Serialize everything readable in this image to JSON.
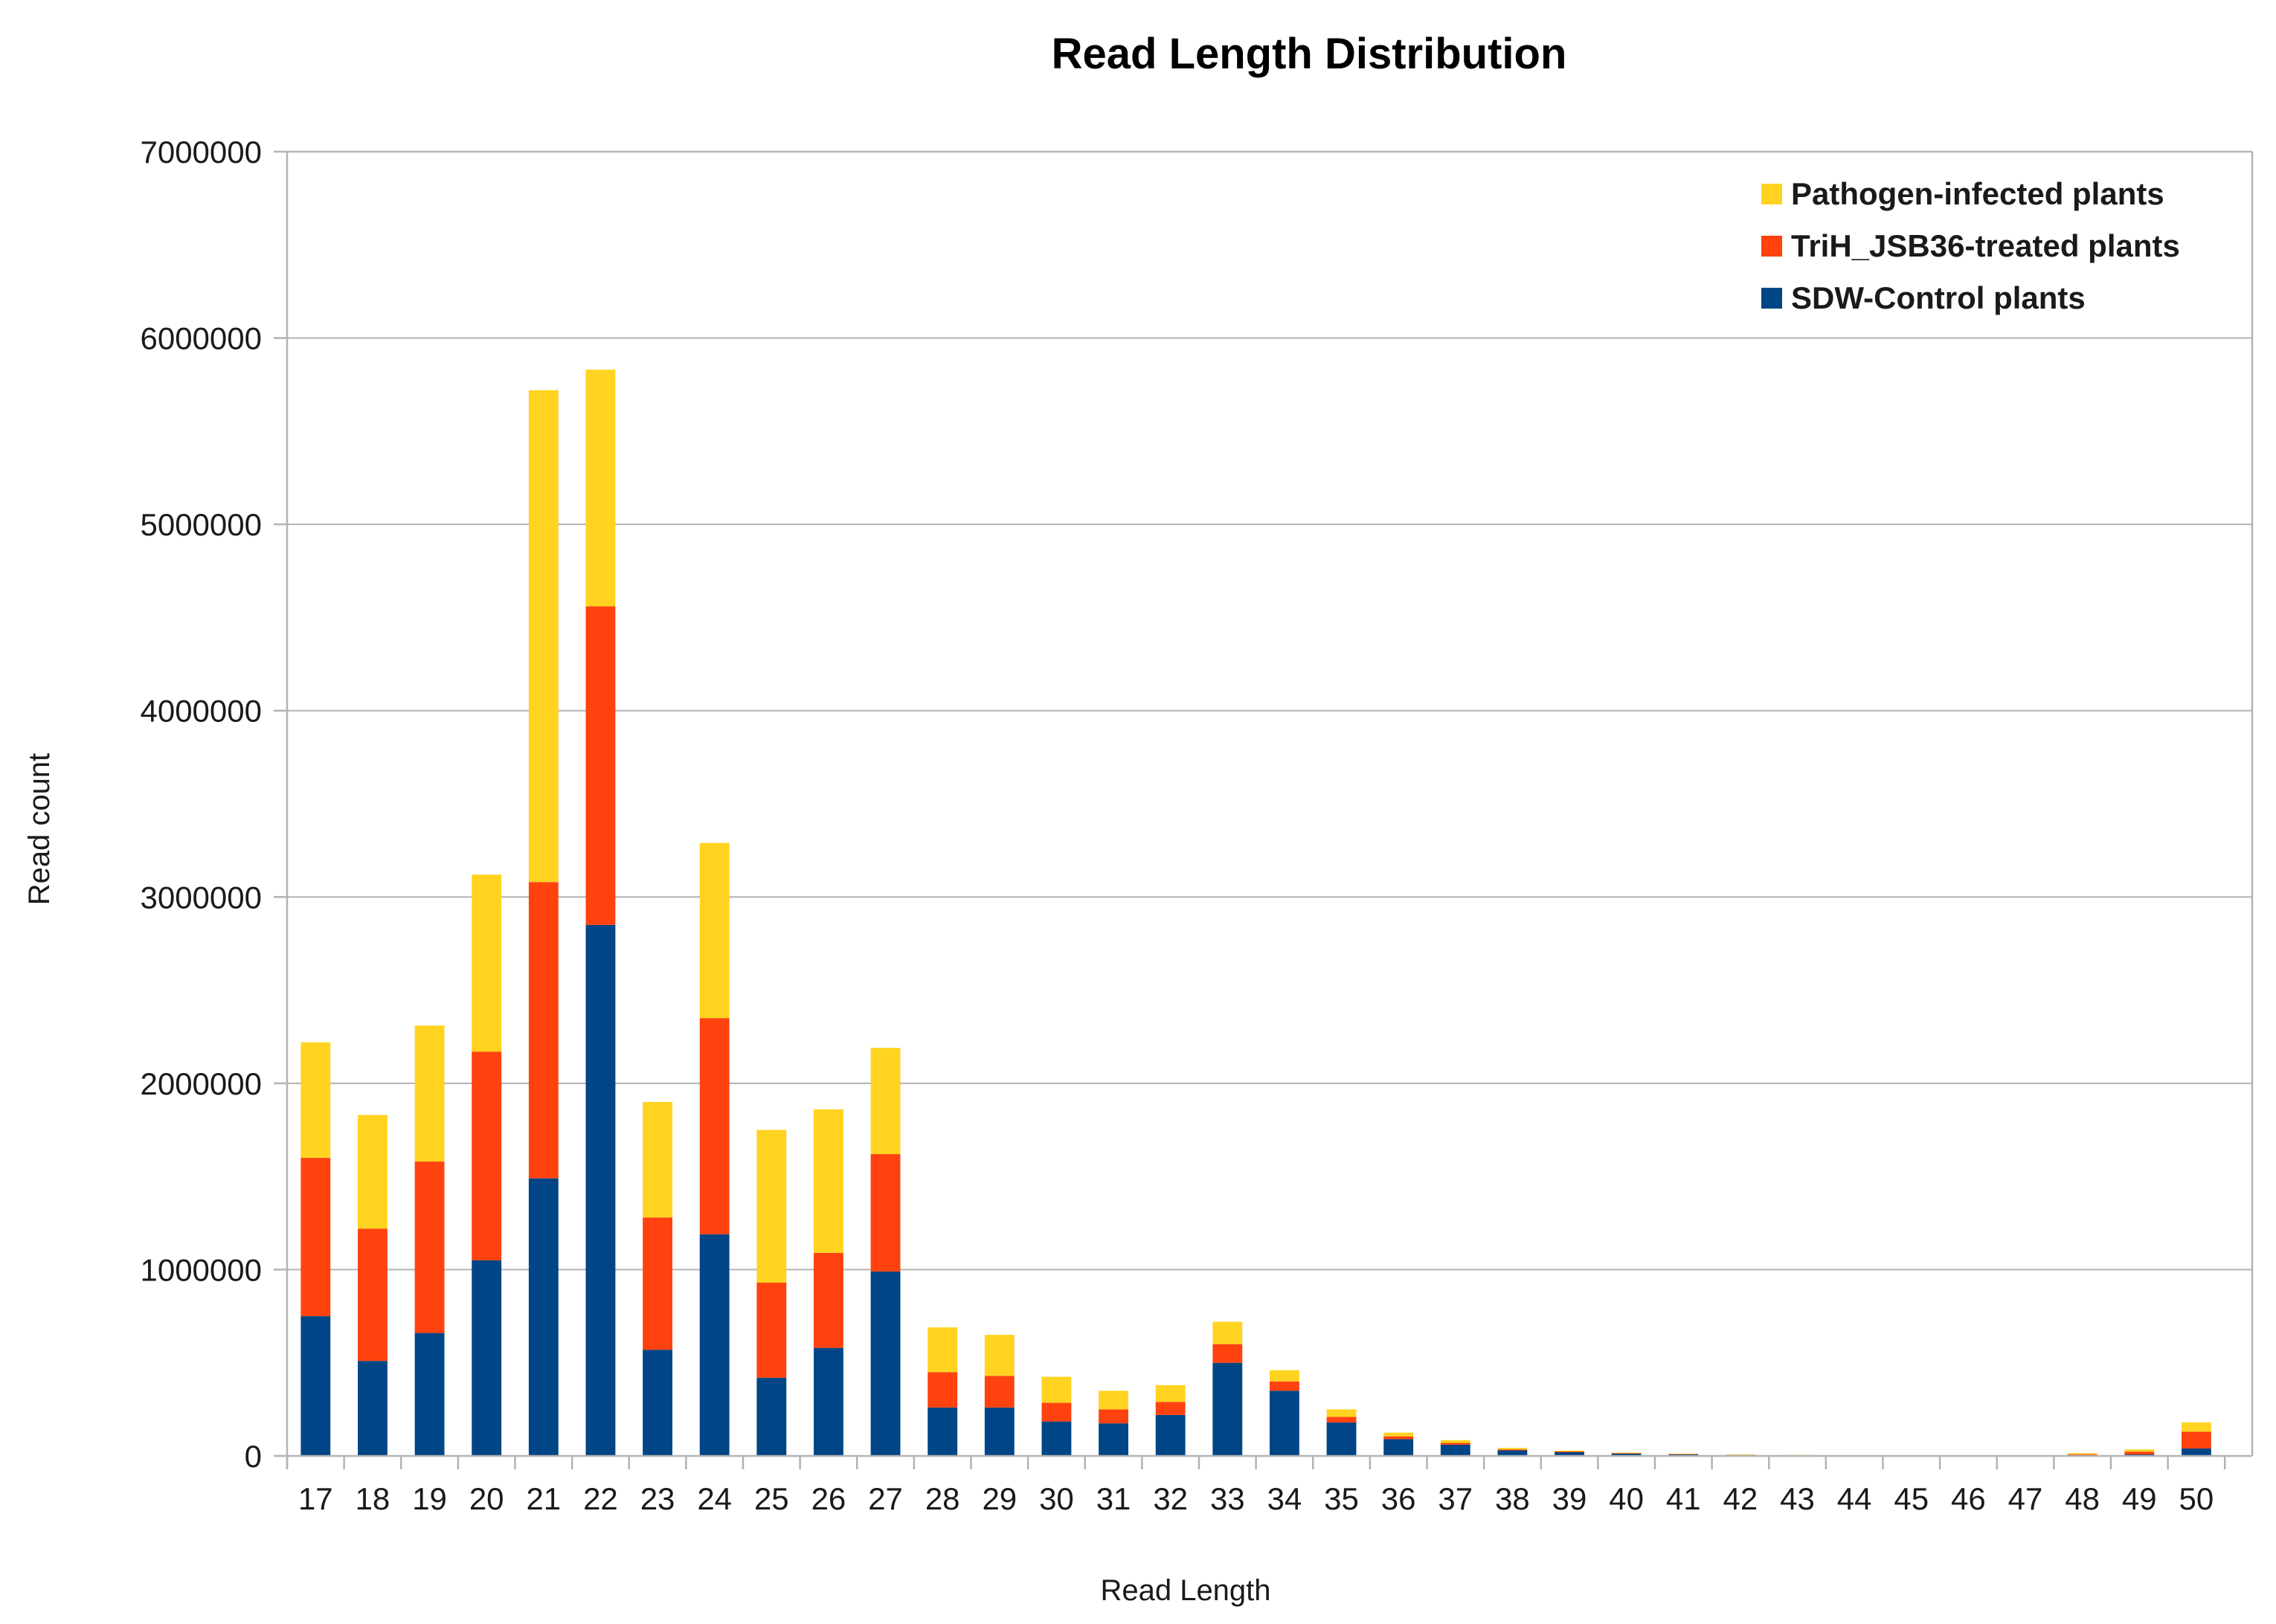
{
  "chart_data": {
    "type": "bar",
    "stacked": true,
    "title": "Read Length Distribution",
    "xlabel": "Read Length",
    "ylabel": "Read count",
    "ylim": [
      0,
      7000000
    ],
    "yticks": [
      0,
      1000000,
      2000000,
      3000000,
      4000000,
      5000000,
      6000000,
      7000000
    ],
    "ytick_labels": [
      "0",
      "1000000",
      "2000000",
      "3000000",
      "4000000",
      "5000000",
      "6000000",
      "7000000"
    ],
    "grid": true,
    "legend_position": "top-right",
    "categories": [
      "17",
      "18",
      "19",
      "20",
      "21",
      "22",
      "23",
      "24",
      "25",
      "26",
      "27",
      "28",
      "29",
      "30",
      "31",
      "32",
      "33",
      "34",
      "35",
      "36",
      "37",
      "38",
      "39",
      "40",
      "41",
      "42",
      "43",
      "44",
      "45",
      "46",
      "47",
      "48",
      "49",
      "50"
    ],
    "series": [
      {
        "name": "SDW-Control plants",
        "color": "#004586",
        "values": [
          750000,
          510000,
          660000,
          1050000,
          1490000,
          2850000,
          570000,
          1190000,
          420000,
          580000,
          990000,
          260000,
          260000,
          185000,
          175000,
          220000,
          500000,
          350000,
          180000,
          90000,
          60000,
          30000,
          20000,
          12000,
          8000,
          5000,
          3000,
          2000,
          2000,
          2000,
          2000,
          4000,
          8000,
          40000
        ]
      },
      {
        "name": "TriH_JSB36-treated plants",
        "color": "#ff420e",
        "values": [
          850000,
          710000,
          920000,
          1120000,
          1590000,
          1710000,
          710000,
          1160000,
          510000,
          510000,
          630000,
          190000,
          170000,
          100000,
          75000,
          70000,
          100000,
          50000,
          30000,
          15000,
          10000,
          5000,
          4000,
          3000,
          2000,
          1000,
          1000,
          1000,
          1000,
          1000,
          1000,
          5000,
          15000,
          90000
        ]
      },
      {
        "name": "Pathogen-infected plants",
        "color": "#ffd320",
        "values": [
          620000,
          610000,
          730000,
          950000,
          2640000,
          1270000,
          620000,
          940000,
          820000,
          770000,
          570000,
          240000,
          220000,
          140000,
          100000,
          90000,
          120000,
          60000,
          40000,
          20000,
          15000,
          8000,
          5000,
          3000,
          2000,
          2000,
          1000,
          1000,
          1000,
          1000,
          1000,
          6000,
          12000,
          50000
        ]
      }
    ]
  }
}
